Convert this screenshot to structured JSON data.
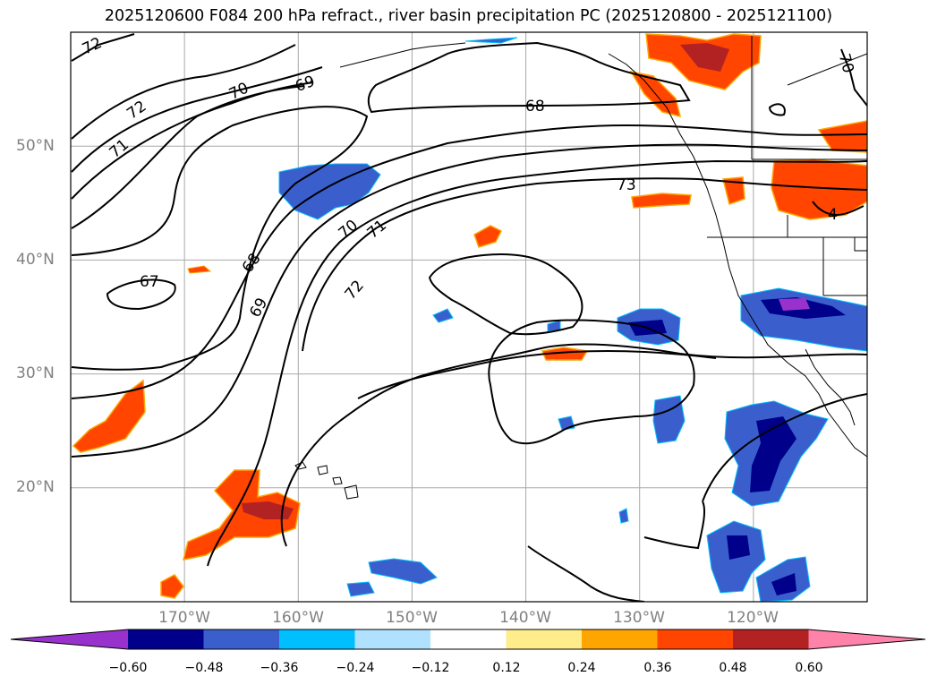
{
  "title": "2025120600 F084 200 hPa refract., river basin precipitation PC (2025120800 - 2025121100)",
  "latitude_labels": [
    {
      "text": "50°N",
      "lat": 50
    },
    {
      "text": "40°N",
      "lat": 40
    },
    {
      "text": "30°N",
      "lat": 30
    },
    {
      "text": "20°N",
      "lat": 20
    }
  ],
  "longitude_labels": [
    {
      "text": "170°W",
      "lon": -170
    },
    {
      "text": "160°W",
      "lon": -160
    },
    {
      "text": "150°W",
      "lon": -150
    },
    {
      "text": "140°W",
      "lon": -140
    },
    {
      "text": "130°W",
      "lon": -130
    },
    {
      "text": "120°W",
      "lon": -120
    }
  ],
  "map_extent": {
    "lon_min": -180,
    "lon_max": -110,
    "lat_min": 10,
    "lat_max": 60
  },
  "contour_labels": [
    "72",
    "72",
    "71",
    "70",
    "69",
    "68",
    "67",
    "68",
    "69",
    "70",
    "71",
    "72",
    "73",
    "70",
    "4"
  ],
  "colorbar": {
    "tick_labels": [
      "−0.60",
      "−0.48",
      "−0.36",
      "−0.24",
      "−0.12",
      "0.12",
      "0.24",
      "0.36",
      "0.48",
      "0.60"
    ],
    "colors": [
      "#9932cc",
      "#00008b",
      "#3a5fcd",
      "#00bfff",
      "#b0e2ff",
      "#ffffff",
      "#ffec8b",
      "#ffa500",
      "#ff4500",
      "#b22222",
      "#ff82ab"
    ]
  }
}
